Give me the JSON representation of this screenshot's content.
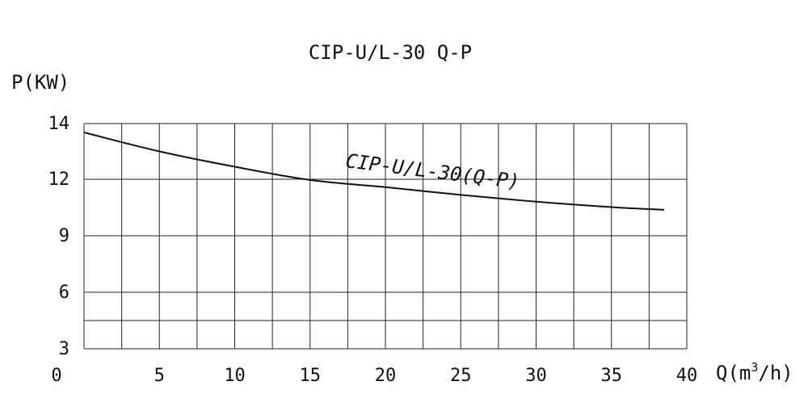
{
  "chart_data": {
    "type": "line",
    "title": "CIP-U/L-30 Q-P",
    "ylabel": "P(KW)",
    "xlabel": "Q(m³/h)",
    "x_ticks": [
      0,
      5,
      10,
      15,
      20,
      25,
      30,
      35,
      40
    ],
    "y_ticks": [
      14,
      12,
      9,
      6,
      3
    ],
    "xlim": [
      0,
      40
    ],
    "grid": true,
    "series": [
      {
        "name": "CIP-U/L-30(Q-P)",
        "x": [
          0,
          5,
          10,
          15,
          20,
          25,
          30,
          35,
          38.5
        ],
        "y": [
          13.68,
          13.0,
          12.45,
          11.96,
          11.58,
          11.17,
          10.81,
          10.52,
          10.38
        ]
      }
    ]
  },
  "colors": {
    "line": "#111111",
    "grid": "#222222",
    "background": "#ffffff"
  }
}
